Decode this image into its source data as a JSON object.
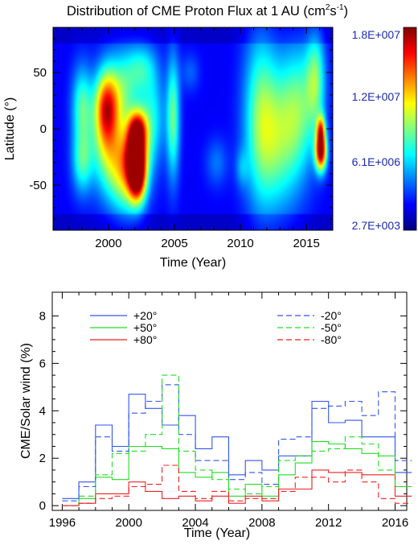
{
  "chart_data": [
    {
      "type": "heatmap",
      "title": "Distribution of CME Proton Flux at 1 AU (cm²s⁻¹)",
      "title_parts": {
        "main": "Distribution of CME Proton Flux at 1 AU (cm",
        "sup1": "2",
        "mid": "s",
        "sup2": "-1",
        "end": ")"
      },
      "xlabel": "Time (Year)",
      "ylabel": "Latitude (°)",
      "xlim": [
        1995.8,
        2017.0
      ],
      "ylim": [
        -90,
        90
      ],
      "xticks": [
        2000,
        2005,
        2010,
        2015
      ],
      "xtick_labels": [
        "2000",
        "2005",
        "2010",
        "2015"
      ],
      "yticks": [
        50,
        0,
        -50
      ],
      "ytick_labels": [
        "50",
        "0",
        "-50"
      ],
      "colorbar": {
        "labels": [
          "1.8E+007",
          "1.2E+007",
          "6.1E+006",
          "2.7E+003"
        ],
        "values": [
          18000000,
          12000000,
          6100000,
          2700
        ],
        "colormap": "jet"
      },
      "z_max": 18000000,
      "blobs": [
        {
          "t": 1998.0,
          "lat": 20,
          "st": 0.55,
          "sl": 25,
          "a": 0.32
        },
        {
          "t": 1998.0,
          "lat": -30,
          "st": 0.55,
          "sl": 20,
          "a": 0.28
        },
        {
          "t": 1999.8,
          "lat": 20,
          "st": 0.6,
          "sl": 22,
          "a": 0.5
        },
        {
          "t": 2000.0,
          "lat": -15,
          "st": 0.9,
          "sl": 30,
          "a": 0.4
        },
        {
          "t": 2001.0,
          "lat": 35,
          "st": 1.0,
          "sl": 25,
          "a": 0.3
        },
        {
          "t": 2001.5,
          "lat": -40,
          "st": 0.9,
          "sl": 25,
          "a": 0.45
        },
        {
          "t": 2002.2,
          "lat": 0,
          "st": 0.5,
          "sl": 12,
          "a": 0.55
        },
        {
          "t": 2002.1,
          "lat": -22,
          "st": 0.55,
          "sl": 16,
          "a": 0.7
        },
        {
          "t": 2002.2,
          "lat": -45,
          "st": 0.45,
          "sl": 15,
          "a": 0.6
        },
        {
          "t": 2002.5,
          "lat": 55,
          "st": 0.8,
          "sl": 15,
          "a": 0.2
        },
        {
          "t": 2003.3,
          "lat": 10,
          "st": 0.7,
          "sl": 30,
          "a": 0.25
        },
        {
          "t": 2004.9,
          "lat": 10,
          "st": 0.35,
          "sl": 38,
          "a": 0.35
        },
        {
          "t": 2008.2,
          "lat": -30,
          "st": 0.6,
          "sl": 15,
          "a": 0.12
        },
        {
          "t": 2006.2,
          "lat": 50,
          "st": 0.5,
          "sl": 12,
          "a": 0.1
        },
        {
          "t": 2011.5,
          "lat": 10,
          "st": 0.9,
          "sl": 55,
          "a": 0.32
        },
        {
          "t": 2013.0,
          "lat": -10,
          "st": 1.2,
          "sl": 45,
          "a": 0.3
        },
        {
          "t": 2014.5,
          "lat": 20,
          "st": 1.0,
          "sl": 40,
          "a": 0.28
        },
        {
          "t": 2015.7,
          "lat": 45,
          "st": 0.5,
          "sl": 30,
          "a": 0.3
        },
        {
          "t": 2016.1,
          "lat": 0,
          "st": 0.22,
          "sl": 9,
          "a": 0.45
        },
        {
          "t": 2016.1,
          "lat": -20,
          "st": 0.3,
          "sl": 12,
          "a": 0.85
        },
        {
          "t": 2010.1,
          "lat": -35,
          "st": 0.35,
          "sl": 12,
          "a": 0.12
        }
      ]
    },
    {
      "type": "line",
      "step": true,
      "xlabel": "Time (Year)",
      "ylabel": "CME/Solar wind (%)",
      "xlim": [
        1995.4,
        2016.7
      ],
      "ylim": [
        -0.2,
        9
      ],
      "xticks": [
        1996,
        2000,
        2004,
        2008,
        2012,
        2016
      ],
      "xtick_labels": [
        "1996",
        "2000",
        "2004",
        "2008",
        "2012",
        "2016"
      ],
      "yticks": [
        0,
        2,
        4,
        6,
        8
      ],
      "ytick_labels": [
        "0",
        "2",
        "4",
        "6",
        "8"
      ],
      "x": [
        1996,
        1997,
        1998,
        1999,
        2000,
        2001,
        2002,
        2003,
        2004,
        2005,
        2006,
        2007,
        2008,
        2009,
        2010,
        2011,
        2012,
        2013,
        2014,
        2015,
        2016
      ],
      "series": [
        {
          "name": "+20°",
          "color": "#3355ee",
          "dash": "",
          "values": [
            0.3,
            1.0,
            3.4,
            2.5,
            4.7,
            4.1,
            3.4,
            3.8,
            2.4,
            2.9,
            1.3,
            1.9,
            1.5,
            2.1,
            2.1,
            4.4,
            3.5,
            3.6,
            2.9,
            2.9,
            1.4
          ]
        },
        {
          "name": "+50°",
          "color": "#22dd22",
          "dash": "",
          "values": [
            0.0,
            0.3,
            1.2,
            1.1,
            2.5,
            2.5,
            2.4,
            1.4,
            1.2,
            1.4,
            0.4,
            0.9,
            0.4,
            1.3,
            1.8,
            2.7,
            2.6,
            2.4,
            2.2,
            2.1,
            0.8
          ]
        },
        {
          "name": "+80°",
          "color": "#ee2222",
          "dash": "",
          "values": [
            0.0,
            0.1,
            0.5,
            0.5,
            1.0,
            0.6,
            0.3,
            0.4,
            0.2,
            0.4,
            0.1,
            0.4,
            0.2,
            0.7,
            0.7,
            1.5,
            1.4,
            1.4,
            1.3,
            1.3,
            0.4
          ]
        },
        {
          "name": "-20°",
          "color": "#3355ee",
          "dash": "7,4",
          "values": [
            0.2,
            0.8,
            2.9,
            2.3,
            3.9,
            4.4,
            5.1,
            3.0,
            1.9,
            1.9,
            1.1,
            1.4,
            0.9,
            2.8,
            2.9,
            4.1,
            4.2,
            4.4,
            3.8,
            4.8,
            1.9
          ]
        },
        {
          "name": "-50°",
          "color": "#22dd22",
          "dash": "7,4",
          "values": [
            0.0,
            0.4,
            1.3,
            2.2,
            2.3,
            3.0,
            5.5,
            2.3,
            1.5,
            1.1,
            0.7,
            0.5,
            0.8,
            1.9,
            2.1,
            2.3,
            2.4,
            2.9,
            2.6,
            1.5,
            0.8
          ]
        },
        {
          "name": "-80°",
          "color": "#ee2222",
          "dash": "7,4",
          "values": [
            0.0,
            0.1,
            0.3,
            0.4,
            0.8,
            0.9,
            1.7,
            0.6,
            0.3,
            0.6,
            0.2,
            0.3,
            0.3,
            0.6,
            1.2,
            1.2,
            1.0,
            1.5,
            1.0,
            0.3,
            0.1
          ]
        }
      ],
      "legend": {
        "placement": "top",
        "columns": 2
      }
    }
  ]
}
